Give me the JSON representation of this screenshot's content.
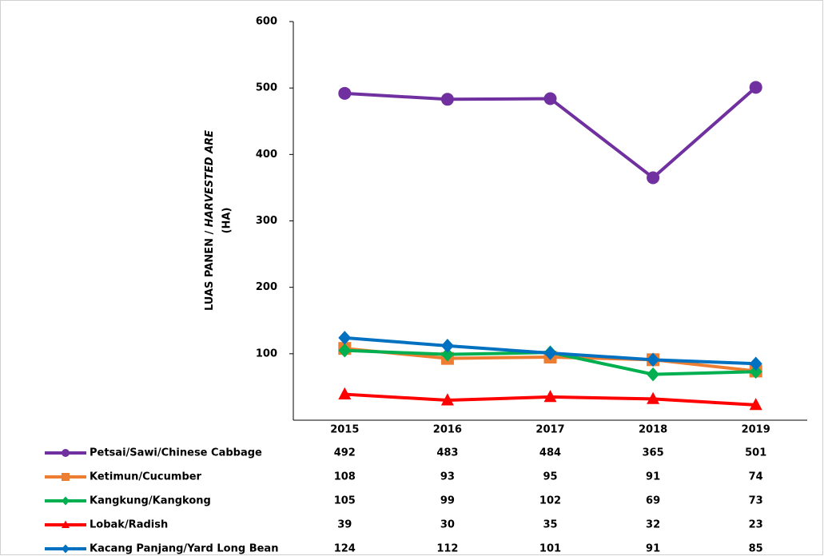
{
  "chart_data": {
    "type": "line",
    "y_label": [
      "LUAS PANEN / ",
      "HARVESTED ARE",
      "(HA)"
    ],
    "categories": [
      "2015",
      "2016",
      "2017",
      "2018",
      "2019"
    ],
    "series": [
      {
        "name": "Petsai/Sawi/Chinese Cabbage",
        "color": "#7030a0",
        "marker": "circle",
        "values": [
          492,
          483,
          484,
          365,
          501
        ]
      },
      {
        "name": "Ketimun/Cucumber",
        "color": "#ed7d31",
        "marker": "square",
        "values": [
          108,
          93,
          95,
          91,
          74
        ]
      },
      {
        "name": "Kangkung/Kangkong",
        "color": "#00b050",
        "marker": "diamond",
        "values": [
          105,
          99,
          102,
          69,
          73
        ]
      },
      {
        "name": "Lobak/Radish",
        "color": "#ff0000",
        "marker": "triangle",
        "values": [
          39,
          30,
          35,
          32,
          23
        ]
      },
      {
        "name": "Kacang Panjang/Yard Long Bean",
        "color": "#0070c0",
        "marker": "diamond",
        "values": [
          124,
          112,
          101,
          91,
          85
        ]
      }
    ],
    "ylim": [
      0,
      600
    ],
    "yticks": [
      100,
      200,
      300,
      400,
      500,
      600
    ],
    "grid": false
  }
}
